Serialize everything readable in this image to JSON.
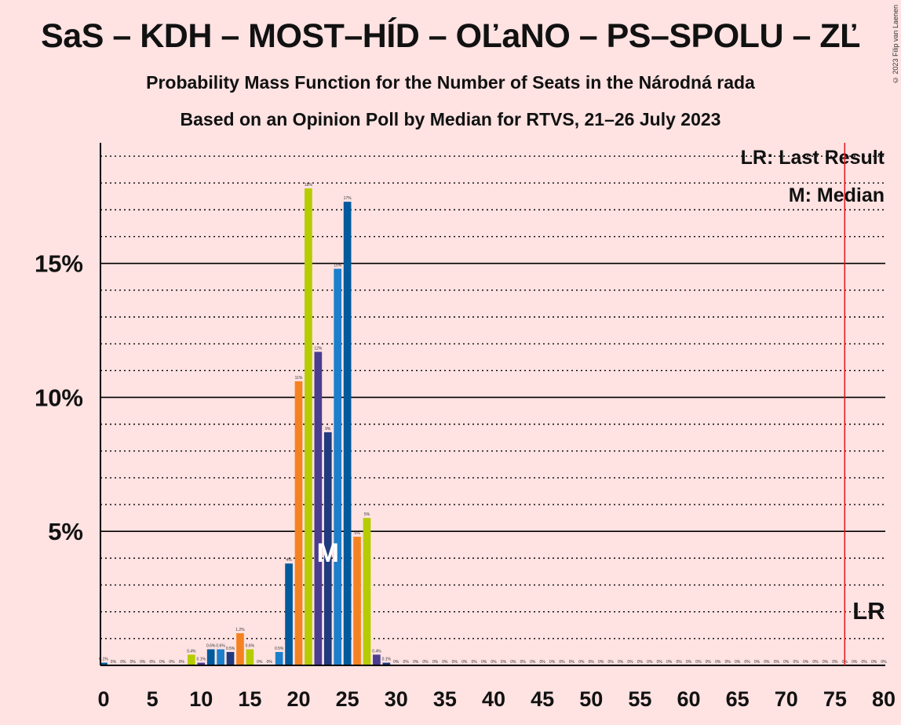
{
  "title": "SaS – KDH – MOST–HÍD – OĽaNO – PS–SPOLU – ZĽ",
  "subtitle1": "Probability Mass Function for the Number of Seats in the Národná rada",
  "subtitle2": "Based on an Opinion Poll by Median for RTVS, 21–26 July 2023",
  "copyright": "© 2023 Filip van Laenen",
  "chart_data": {
    "type": "bar",
    "xlabel": "",
    "ylabel": "",
    "xlim": [
      0,
      80
    ],
    "ylim": [
      0,
      19.5
    ],
    "x_ticks": [
      0,
      5,
      10,
      15,
      20,
      25,
      30,
      35,
      40,
      45,
      50,
      55,
      60,
      65,
      70,
      75,
      80
    ],
    "y_ticks": [
      {
        "value": 5,
        "label": "5%"
      },
      {
        "value": 10,
        "label": "10%"
      },
      {
        "value": 15,
        "label": "15%"
      }
    ],
    "grid_dotted_step": 1,
    "legend": {
      "position": "top-right",
      "entries": [
        "LR: Last Result",
        "M: Median"
      ]
    },
    "last_result": {
      "x": 76,
      "label": "LR"
    },
    "median": {
      "x": 23,
      "label": "M"
    },
    "palette": [
      "#005A9C",
      "#B5CC00",
      "#4B3D8F",
      "#203A80",
      "#1C7FCC",
      "#F58220"
    ],
    "bars": [
      {
        "x": 0,
        "value": 0.1,
        "label": "0.1%",
        "color": "#005A9C"
      },
      {
        "x": 1,
        "value": 0,
        "label": "0%",
        "color": "#005A9C"
      },
      {
        "x": 2,
        "value": 0,
        "label": "0%",
        "color": "#005A9C"
      },
      {
        "x": 3,
        "value": 0,
        "label": "0%",
        "color": "#005A9C"
      },
      {
        "x": 4,
        "value": 0,
        "label": "0%",
        "color": "#005A9C"
      },
      {
        "x": 5,
        "value": 0,
        "label": "0%",
        "color": "#005A9C"
      },
      {
        "x": 6,
        "value": 0,
        "label": "0%",
        "color": "#005A9C"
      },
      {
        "x": 7,
        "value": 0,
        "label": "0%",
        "color": "#005A9C"
      },
      {
        "x": 8,
        "value": 0,
        "label": "0%",
        "color": "#005A9C"
      },
      {
        "x": 9,
        "value": 0.4,
        "label": "0.4%",
        "color": "#B5CC00"
      },
      {
        "x": 10,
        "value": 0.1,
        "label": "0.1%",
        "color": "#4B3D8F"
      },
      {
        "x": 11,
        "value": 0.6,
        "label": "0.6%",
        "color": "#005A9C"
      },
      {
        "x": 12,
        "value": 0.6,
        "label": "0.6%",
        "color": "#1C7FCC"
      },
      {
        "x": 13,
        "value": 0.5,
        "label": "0.5%",
        "color": "#203A80"
      },
      {
        "x": 14,
        "value": 1.2,
        "label": "1.2%",
        "color": "#F58220"
      },
      {
        "x": 15,
        "value": 0.6,
        "label": "0.6%",
        "color": "#B5CC00"
      },
      {
        "x": 16,
        "value": 0,
        "label": "0%",
        "color": "#4B3D8F"
      },
      {
        "x": 17,
        "value": 0,
        "label": "0%",
        "color": "#4B3D8F"
      },
      {
        "x": 18,
        "value": 0.5,
        "label": "0.5%",
        "color": "#1C7FCC"
      },
      {
        "x": 19,
        "value": 3.8,
        "label": "4%",
        "color": "#005A9C"
      },
      {
        "x": 20,
        "value": 10.6,
        "label": "11%",
        "color": "#F58220"
      },
      {
        "x": 21,
        "value": 17.8,
        "label": "18%",
        "color": "#B5CC00"
      },
      {
        "x": 22,
        "value": 11.7,
        "label": "12%",
        "color": "#4B3D8F"
      },
      {
        "x": 23,
        "value": 8.7,
        "label": "9%",
        "color": "#203A80"
      },
      {
        "x": 24,
        "value": 14.8,
        "label": "15%",
        "color": "#1C7FCC"
      },
      {
        "x": 25,
        "value": 17.3,
        "label": "17%",
        "color": "#005A9C"
      },
      {
        "x": 26,
        "value": 4.8,
        "label": "5%",
        "color": "#F58220"
      },
      {
        "x": 27,
        "value": 5.5,
        "label": "5%",
        "color": "#B5CC00"
      },
      {
        "x": 28,
        "value": 0.4,
        "label": "0.4%",
        "color": "#4B3D8F"
      },
      {
        "x": 29,
        "value": 0.1,
        "label": "0.1%",
        "color": "#203A80"
      },
      {
        "x": 30,
        "value": 0,
        "label": "0%",
        "color": "#1C7FCC"
      },
      {
        "x": 31,
        "value": 0,
        "label": "0%",
        "color": "#1C7FCC"
      },
      {
        "x": 32,
        "value": 0,
        "label": "0%",
        "color": "#1C7FCC"
      },
      {
        "x": 33,
        "value": 0,
        "label": "0%",
        "color": "#1C7FCC"
      },
      {
        "x": 34,
        "value": 0,
        "label": "0%",
        "color": "#1C7FCC"
      },
      {
        "x": 35,
        "value": 0,
        "label": "0%",
        "color": "#1C7FCC"
      },
      {
        "x": 36,
        "value": 0,
        "label": "0%",
        "color": "#1C7FCC"
      },
      {
        "x": 37,
        "value": 0,
        "label": "0%",
        "color": "#1C7FCC"
      },
      {
        "x": 38,
        "value": 0,
        "label": "0%",
        "color": "#1C7FCC"
      },
      {
        "x": 39,
        "value": 0,
        "label": "0%",
        "color": "#1C7FCC"
      },
      {
        "x": 40,
        "value": 0,
        "label": "0%",
        "color": "#1C7FCC"
      },
      {
        "x": 41,
        "value": 0,
        "label": "0%",
        "color": "#1C7FCC"
      },
      {
        "x": 42,
        "value": 0,
        "label": "0%",
        "color": "#1C7FCC"
      },
      {
        "x": 43,
        "value": 0,
        "label": "0%",
        "color": "#1C7FCC"
      },
      {
        "x": 44,
        "value": 0,
        "label": "0%",
        "color": "#1C7FCC"
      },
      {
        "x": 45,
        "value": 0,
        "label": "0%",
        "color": "#1C7FCC"
      },
      {
        "x": 46,
        "value": 0,
        "label": "0%",
        "color": "#1C7FCC"
      },
      {
        "x": 47,
        "value": 0,
        "label": "0%",
        "color": "#1C7FCC"
      },
      {
        "x": 48,
        "value": 0,
        "label": "0%",
        "color": "#1C7FCC"
      },
      {
        "x": 49,
        "value": 0,
        "label": "0%",
        "color": "#1C7FCC"
      },
      {
        "x": 50,
        "value": 0,
        "label": "0%",
        "color": "#1C7FCC"
      },
      {
        "x": 51,
        "value": 0,
        "label": "0%",
        "color": "#1C7FCC"
      },
      {
        "x": 52,
        "value": 0,
        "label": "0%",
        "color": "#1C7FCC"
      },
      {
        "x": 53,
        "value": 0,
        "label": "0%",
        "color": "#1C7FCC"
      },
      {
        "x": 54,
        "value": 0,
        "label": "0%",
        "color": "#1C7FCC"
      },
      {
        "x": 55,
        "value": 0,
        "label": "0%",
        "color": "#1C7FCC"
      },
      {
        "x": 56,
        "value": 0,
        "label": "0%",
        "color": "#1C7FCC"
      },
      {
        "x": 57,
        "value": 0,
        "label": "0%",
        "color": "#1C7FCC"
      },
      {
        "x": 58,
        "value": 0,
        "label": "0%",
        "color": "#1C7FCC"
      },
      {
        "x": 59,
        "value": 0,
        "label": "0%",
        "color": "#1C7FCC"
      },
      {
        "x": 60,
        "value": 0,
        "label": "0%",
        "color": "#1C7FCC"
      },
      {
        "x": 61,
        "value": 0,
        "label": "0%",
        "color": "#1C7FCC"
      },
      {
        "x": 62,
        "value": 0,
        "label": "0%",
        "color": "#1C7FCC"
      },
      {
        "x": 63,
        "value": 0,
        "label": "0%",
        "color": "#1C7FCC"
      },
      {
        "x": 64,
        "value": 0,
        "label": "0%",
        "color": "#1C7FCC"
      },
      {
        "x": 65,
        "value": 0,
        "label": "0%",
        "color": "#1C7FCC"
      },
      {
        "x": 66,
        "value": 0,
        "label": "0%",
        "color": "#1C7FCC"
      },
      {
        "x": 67,
        "value": 0,
        "label": "0%",
        "color": "#1C7FCC"
      },
      {
        "x": 68,
        "value": 0,
        "label": "0%",
        "color": "#1C7FCC"
      },
      {
        "x": 69,
        "value": 0,
        "label": "0%",
        "color": "#1C7FCC"
      },
      {
        "x": 70,
        "value": 0,
        "label": "0%",
        "color": "#1C7FCC"
      },
      {
        "x": 71,
        "value": 0,
        "label": "0%",
        "color": "#1C7FCC"
      },
      {
        "x": 72,
        "value": 0,
        "label": "0%",
        "color": "#1C7FCC"
      },
      {
        "x": 73,
        "value": 0,
        "label": "0%",
        "color": "#1C7FCC"
      },
      {
        "x": 74,
        "value": 0,
        "label": "0%",
        "color": "#1C7FCC"
      },
      {
        "x": 75,
        "value": 0,
        "label": "0%",
        "color": "#1C7FCC"
      },
      {
        "x": 76,
        "value": 0,
        "label": "0%",
        "color": "#1C7FCC"
      },
      {
        "x": 77,
        "value": 0,
        "label": "0%",
        "color": "#1C7FCC"
      },
      {
        "x": 78,
        "value": 0,
        "label": "0%",
        "color": "#1C7FCC"
      },
      {
        "x": 79,
        "value": 0,
        "label": "0%",
        "color": "#1C7FCC"
      },
      {
        "x": 80,
        "value": 0,
        "label": "0%",
        "color": "#1C7FCC"
      }
    ]
  }
}
